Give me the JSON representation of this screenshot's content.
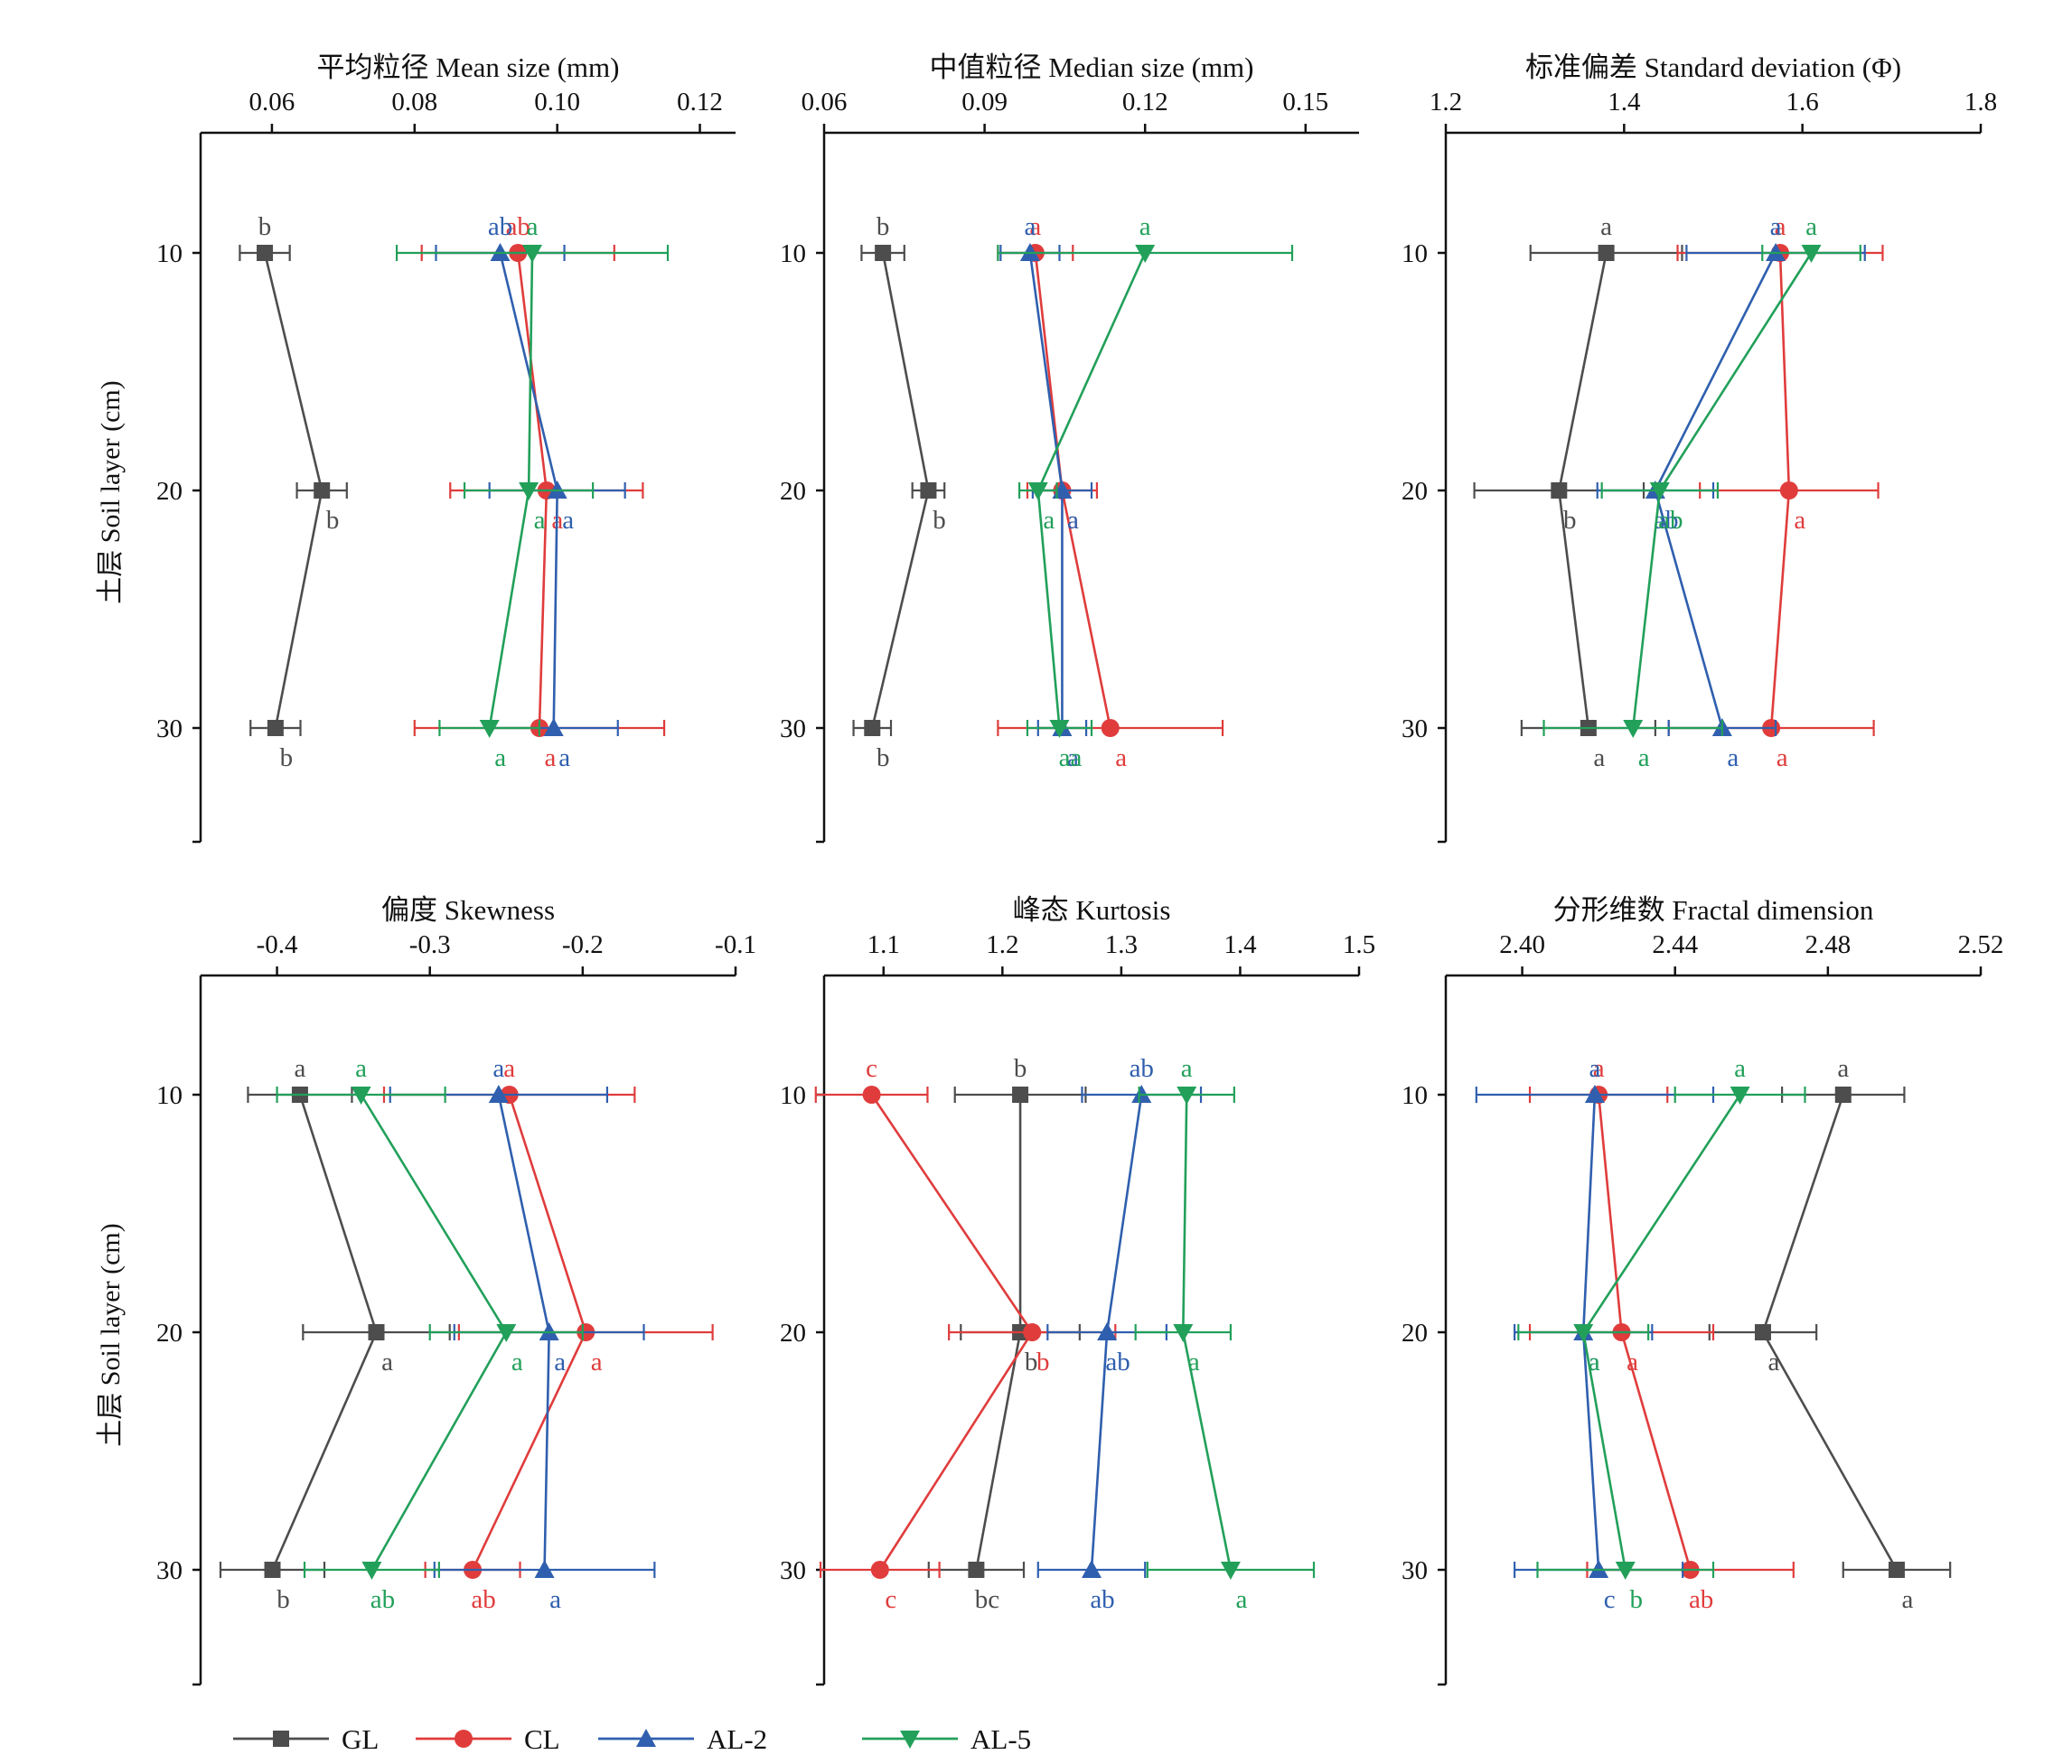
{
  "figure": {
    "y_axis_label": "土层 Soil layer (cm)",
    "y_ticks": [
      10,
      20,
      30
    ],
    "legend": [
      {
        "name": "GL",
        "color": "#4d4d4d",
        "marker": "square"
      },
      {
        "name": "CL",
        "color": "#e03c3c",
        "marker": "circle"
      },
      {
        "name": "AL-2",
        "color": "#2f5fae",
        "marker": "triangle-up"
      },
      {
        "name": "AL-5",
        "color": "#22a05a",
        "marker": "triangle-down"
      }
    ]
  },
  "chart_data": [
    {
      "type": "line",
      "title": "平均粒径 Mean size (mm)",
      "xlim": [
        0.05,
        0.125
      ],
      "xticks": [
        0.06,
        0.08,
        0.1,
        0.12
      ],
      "tick_labels": [
        "0.06",
        "0.08",
        "0.10",
        "0.12"
      ],
      "depth": [
        10,
        20,
        30
      ],
      "series": [
        {
          "name": "GL",
          "values": [
            0.059,
            0.067,
            0.0605
          ],
          "errors": [
            0.0035,
            0.0035,
            0.0035
          ],
          "letters": [
            "b",
            "b",
            "b"
          ]
        },
        {
          "name": "CL",
          "values": [
            0.0945,
            0.0985,
            0.0975
          ],
          "errors": [
            0.0135,
            0.0135,
            0.0175
          ],
          "letters": [
            "ab",
            "a",
            "a"
          ]
        },
        {
          "name": "AL-2",
          "values": [
            0.092,
            0.1,
            0.0995
          ],
          "errors": [
            0.009,
            0.0095,
            0.009
          ],
          "letters": [
            "ab",
            "a",
            "a"
          ]
        },
        {
          "name": "AL-5",
          "values": [
            0.0965,
            0.096,
            0.0905
          ],
          "errors": [
            0.019,
            0.009,
            0.007
          ],
          "letters": [
            "a",
            "a",
            "a"
          ]
        }
      ]
    },
    {
      "type": "line",
      "title": "中值粒径 Median size (mm)",
      "xlim": [
        0.06,
        0.16
      ],
      "xticks": [
        0.06,
        0.09,
        0.12,
        0.15
      ],
      "tick_labels": [
        "0.06",
        "0.09",
        "0.12",
        "0.15"
      ],
      "depth": [
        10,
        20,
        30
      ],
      "series": [
        {
          "name": "GL",
          "values": [
            0.071,
            0.0795,
            0.069
          ],
          "errors": [
            0.004,
            0.003,
            0.0035
          ],
          "letters": [
            "b",
            "b",
            "b"
          ]
        },
        {
          "name": "CL",
          "values": [
            0.0995,
            0.1045,
            0.1135
          ],
          "errors": [
            0.007,
            0.0065,
            0.021
          ],
          "letters": [
            "a",
            "a",
            "a"
          ]
        },
        {
          "name": "AL-2",
          "values": [
            0.0985,
            0.1045,
            0.1045
          ],
          "errors": [
            0.0055,
            0.0055,
            0.0045
          ],
          "letters": [
            "a",
            "a",
            "a"
          ]
        },
        {
          "name": "AL-5",
          "values": [
            0.12,
            0.1,
            0.104
          ],
          "errors": [
            0.0275,
            0.0035,
            0.006
          ],
          "letters": [
            "a",
            "a",
            "aa"
          ]
        }
      ]
    },
    {
      "type": "line",
      "title": "标准偏差 Standard deviation (Φ)",
      "xlim": [
        1.2,
        1.8
      ],
      "xticks": [
        1.2,
        1.4,
        1.6,
        1.8
      ],
      "tick_labels": [
        "1.2",
        "1.4",
        "1.6",
        "1.8"
      ],
      "depth": [
        10,
        20,
        30
      ],
      "series": [
        {
          "name": "GL",
          "values": [
            1.38,
            1.327,
            1.36
          ],
          "errors": [
            0.085,
            0.095,
            0.075
          ],
          "letters": [
            "a",
            "b",
            "a"
          ]
        },
        {
          "name": "CL",
          "values": [
            1.575,
            1.585,
            1.565
          ],
          "errors": [
            0.115,
            0.1,
            0.115
          ],
          "letters": [
            "a",
            "a",
            "a"
          ]
        },
        {
          "name": "AL-2",
          "values": [
            1.57,
            1.435,
            1.51
          ],
          "errors": [
            0.1,
            0.065,
            0.06
          ],
          "letters": [
            "a",
            "ab",
            "a"
          ]
        },
        {
          "name": "AL-5",
          "values": [
            1.61,
            1.44,
            1.41
          ],
          "errors": [
            0.055,
            0.065,
            0.1
          ],
          "letters": [
            "a",
            "ab",
            "a"
          ]
        }
      ]
    },
    {
      "type": "line",
      "title": "偏度 Skewness",
      "xlim": [
        -0.45,
        -0.1
      ],
      "xticks": [
        -0.4,
        -0.3,
        -0.2,
        -0.1
      ],
      "tick_labels": [
        "-0.4",
        "-0.3",
        "-0.2",
        "-0.1"
      ],
      "depth": [
        10,
        20,
        30
      ],
      "series": [
        {
          "name": "GL",
          "values": [
            -0.385,
            -0.335,
            -0.403
          ],
          "errors": [
            0.034,
            0.048,
            0.034
          ],
          "letters": [
            "a",
            "a",
            "b"
          ]
        },
        {
          "name": "CL",
          "values": [
            -0.248,
            -0.198,
            -0.272
          ],
          "errors": [
            0.082,
            0.083,
            0.031
          ],
          "letters": [
            "a",
            "a",
            "ab"
          ]
        },
        {
          "name": "AL-2",
          "values": [
            -0.255,
            -0.222,
            -0.225
          ],
          "errors": [
            0.071,
            0.062,
            0.072
          ],
          "letters": [
            "a",
            "a",
            "a"
          ]
        },
        {
          "name": "AL-5",
          "values": [
            -0.345,
            -0.25,
            -0.338
          ],
          "errors": [
            0.055,
            0.05,
            0.044
          ],
          "letters": [
            "a",
            "a",
            "ab"
          ]
        }
      ]
    },
    {
      "type": "line",
      "title": "峰态 Kurtosis",
      "xlim": [
        1.05,
        1.5
      ],
      "xticks": [
        1.1,
        1.2,
        1.3,
        1.4,
        1.5
      ],
      "tick_labels": [
        "1.1",
        "1.2",
        "1.3",
        "1.4",
        "1.5"
      ],
      "depth": [
        10,
        20,
        30
      ],
      "series": [
        {
          "name": "GL",
          "values": [
            1.215,
            1.215,
            1.178
          ],
          "errors": [
            0.055,
            0.05,
            0.04
          ],
          "letters": [
            "b",
            "b",
            "bc"
          ]
        },
        {
          "name": "CL",
          "values": [
            1.09,
            1.225,
            1.097
          ],
          "errors": [
            0.047,
            0.07,
            0.05
          ],
          "letters": [
            "c",
            "b",
            "c"
          ]
        },
        {
          "name": "AL-2",
          "values": [
            1.317,
            1.288,
            1.275
          ],
          "errors": [
            0.05,
            0.05,
            0.045
          ],
          "letters": [
            "ab",
            "ab",
            "ab"
          ]
        },
        {
          "name": "AL-5",
          "values": [
            1.355,
            1.352,
            1.392
          ],
          "errors": [
            0.04,
            0.04,
            0.07
          ],
          "letters": [
            "a",
            "a",
            "a"
          ]
        }
      ]
    },
    {
      "type": "line",
      "title": "分形维数 Fractal dimension",
      "xlim": [
        2.38,
        2.52
      ],
      "xticks": [
        2.4,
        2.44,
        2.48,
        2.52
      ],
      "tick_labels": [
        "2.40",
        "2.44",
        "2.48",
        "2.52"
      ],
      "depth": [
        10,
        20,
        30
      ],
      "series": [
        {
          "name": "GL",
          "values": [
            2.484,
            2.463,
            2.498
          ],
          "errors": [
            0.016,
            0.014,
            0.014
          ],
          "letters": [
            "a",
            "a",
            "a"
          ]
        },
        {
          "name": "CL",
          "values": [
            2.42,
            2.426,
            2.444
          ],
          "errors": [
            0.018,
            0.024,
            0.027
          ],
          "letters": [
            "a",
            "a",
            "ab"
          ]
        },
        {
          "name": "AL-2",
          "values": [
            2.419,
            2.416,
            2.42
          ],
          "errors": [
            0.031,
            0.018,
            0.022
          ],
          "letters": [
            "a",
            "a",
            "c"
          ]
        },
        {
          "name": "AL-5",
          "values": [
            2.457,
            2.416,
            2.427
          ],
          "errors": [
            0.017,
            0.017,
            0.023
          ],
          "letters": [
            "a",
            "a",
            "b"
          ]
        }
      ]
    }
  ]
}
